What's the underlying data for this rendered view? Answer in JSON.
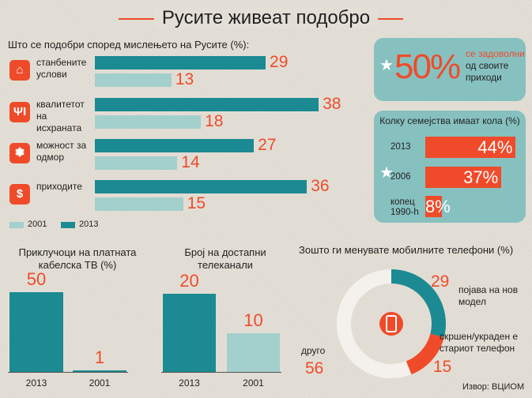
{
  "title": "Русите живеат подобро",
  "colors": {
    "accent": "#ef4b2a",
    "teal_dark": "#1c8a92",
    "teal_light": "#a3cfcc",
    "panel": "#86c1c0"
  },
  "source": "Извор: ВЦИОМ",
  "chart_data": [
    {
      "type": "bar",
      "title": "Што се подобри според мислењето на Русите (%):",
      "orientation": "horizontal",
      "categories": [
        "станбените услови",
        "квалитетот на исхраната",
        "можност за одмор",
        "приходите"
      ],
      "icons": [
        "house-icon",
        "utensils-icon",
        "palm-tree-icon",
        "dollar-icon"
      ],
      "series": [
        {
          "name": "2013",
          "values": [
            29,
            38,
            27,
            36
          ]
        },
        {
          "name": "2001",
          "values": [
            13,
            18,
            14,
            15
          ]
        }
      ],
      "xlim": [
        0,
        40
      ]
    },
    {
      "type": "bar",
      "title": "Колку семејства имаат кола (%)",
      "orientation": "horizontal",
      "categories": [
        "2013",
        "2006",
        "копец 1990-h"
      ],
      "values": [
        44,
        37,
        8
      ],
      "labels": [
        "44%",
        "37%",
        "8%"
      ],
      "xlim": [
        0,
        45
      ]
    },
    {
      "type": "bar",
      "title": "Приклучоци на платната кабелска ТВ (%)",
      "categories": [
        "2013",
        "2001"
      ],
      "values": [
        50,
        1
      ],
      "ylim": [
        0,
        50
      ]
    },
    {
      "type": "bar",
      "title": "Број на достапни телеканали",
      "categories": [
        "2013",
        "2001"
      ],
      "values": [
        20,
        10
      ],
      "ylim": [
        0,
        20
      ]
    },
    {
      "type": "pie",
      "title": "Зошто ги менувате мобилните телефони (%)",
      "categories": [
        "појава на нов модел",
        "скршен/украден е стариот телефон",
        "друго"
      ],
      "values": [
        29,
        15,
        56
      ],
      "colors": [
        "#1c8a92",
        "#ef4b2a",
        "#f4f1ec"
      ]
    }
  ],
  "callout": {
    "value": "50%",
    "text_1": "се задоволни",
    "text_2": "од своите",
    "text_3": "приходи"
  }
}
